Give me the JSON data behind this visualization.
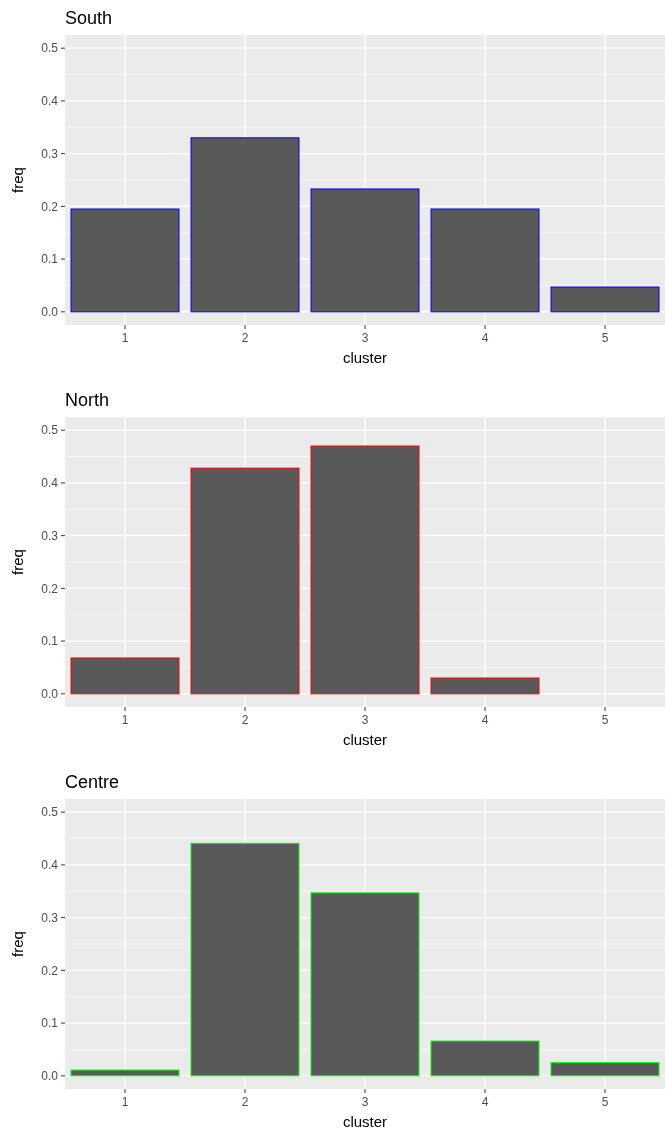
{
  "chart_data": [
    {
      "type": "bar",
      "title": "South",
      "xlabel": "cluster",
      "ylabel": "freq",
      "categories": [
        "1",
        "2",
        "3",
        "4",
        "5"
      ],
      "values": [
        0.195,
        0.33,
        0.233,
        0.195,
        0.047
      ],
      "color": "#595959",
      "ylim": [
        -0.025,
        0.525
      ],
      "yticks": [
        {
          "value": 0,
          "label": "0.0"
        },
        {
          "value": 0.1,
          "label": "0.1"
        },
        {
          "value": 0.2,
          "label": "0.2"
        },
        {
          "value": 0.3,
          "label": "0.3"
        },
        {
          "value": 0.4,
          "label": "0.4"
        },
        {
          "value": 0.5,
          "label": "0.5"
        }
      ],
      "grid": true
    },
    {
      "type": "bar",
      "title": "North",
      "xlabel": "cluster",
      "ylabel": "freq",
      "categories": [
        "1",
        "2",
        "3",
        "4",
        "5"
      ],
      "values": [
        0.068,
        0.428,
        0.47,
        0.03,
        0.0
      ],
      "color": "#595959",
      "ylim": [
        -0.025,
        0.525
      ],
      "yticks": [
        {
          "value": 0,
          "label": "0.0"
        },
        {
          "value": 0.1,
          "label": "0.1"
        },
        {
          "value": 0.2,
          "label": "0.2"
        },
        {
          "value": 0.3,
          "label": "0.3"
        },
        {
          "value": 0.4,
          "label": "0.4"
        },
        {
          "value": 0.5,
          "label": "0.5"
        }
      ],
      "grid": true
    },
    {
      "type": "bar",
      "title": "Centre",
      "xlabel": "cluster",
      "ylabel": "freq",
      "categories": [
        "1",
        "2",
        "3",
        "4",
        "5"
      ],
      "values": [
        0.011,
        0.441,
        0.347,
        0.066,
        0.025
      ],
      "color": "#595959",
      "ylim": [
        -0.025,
        0.525
      ],
      "yticks": [
        {
          "value": 0,
          "label": "0.0"
        },
        {
          "value": 0.1,
          "label": "0.1"
        },
        {
          "value": 0.2,
          "label": "0.2"
        },
        {
          "value": 0.3,
          "label": "0.3"
        },
        {
          "value": 0.4,
          "label": "0.4"
        },
        {
          "value": 0.5,
          "label": "0.5"
        }
      ],
      "grid": true
    }
  ]
}
